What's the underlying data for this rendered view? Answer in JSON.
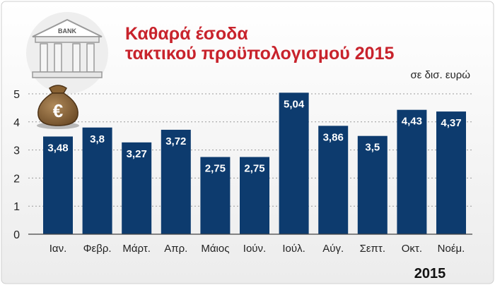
{
  "chart_data": {
    "type": "bar",
    "title_lines": [
      "Καθαρά έσοδα",
      "τακτικού προϋπολογισμού 2015"
    ],
    "unit_label": "σε δισ. ευρώ",
    "year_label": "2015",
    "categories": [
      "Ιαν.",
      "Φεβρ.",
      "Μάρτ.",
      "Απρ.",
      "Μάιος",
      "Ιούν.",
      "Ιούλ.",
      "Αύγ.",
      "Σεπτ.",
      "Οκτ.",
      "Νοέμ."
    ],
    "values": [
      3.48,
      3.8,
      3.27,
      3.72,
      2.75,
      2.75,
      5.04,
      3.86,
      3.5,
      4.43,
      4.37
    ],
    "value_labels": [
      "3,48",
      "3,8",
      "3,27",
      "3,72",
      "2,75",
      "2,75",
      "5,04",
      "3,86",
      "3,5",
      "4,43",
      "4,37"
    ],
    "yticks": [
      "0",
      "1",
      "2",
      "3",
      "4",
      "5"
    ],
    "ylim": [
      0,
      5
    ],
    "grid": true,
    "bar_color": "#0d3b6e",
    "title_color": "#c8232c",
    "bank_sign": "BANK"
  }
}
